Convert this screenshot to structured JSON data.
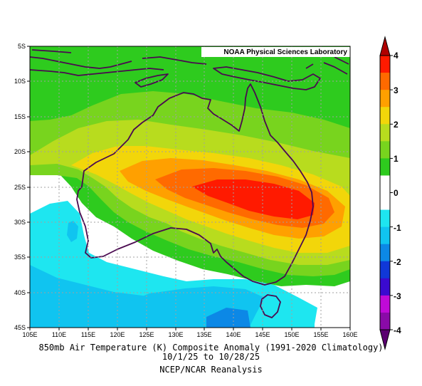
{
  "colors": {
    "plus4": "#b00000",
    "plus35": "#ff1a00",
    "plus3": "#ff6a00",
    "plus25": "#ffa000",
    "plus2": "#f2d60a",
    "plus15": "#b8dc1e",
    "plus1": "#78d41e",
    "plus05": "#2ecb1e",
    "zero": "#ffffff",
    "minus05": "#1ee6f0",
    "minus1": "#10c4f0",
    "minus15": "#0c88e6",
    "minus2": "#1038d8",
    "minus25": "#3a0ad0",
    "minus3": "#c00ad8",
    "minus35": "#8a0aa8",
    "minus4": "#5a0070",
    "coast": "#4a0a50"
  },
  "lab_label": "NOAA Physical Sciences Laboratory",
  "lat_labels": [
    "5S",
    "10S",
    "15S",
    "20S",
    "25S",
    "30S",
    "35S",
    "40S",
    "45S"
  ],
  "lon_labels": [
    "105E",
    "110E",
    "115E",
    "120E",
    "125E",
    "130E",
    "135E",
    "140E",
    "145E",
    "150E",
    "155E",
    "160E"
  ],
  "colorbar": {
    "labels": [
      "4",
      "3",
      "2",
      "1",
      "0",
      "-1",
      "-2",
      "-3",
      "-4"
    ],
    "levels": [
      4,
      3.5,
      3,
      2.5,
      2,
      1.5,
      1,
      0.5,
      -0.5,
      -1,
      -1.5,
      -2,
      -2.5,
      -3,
      -3.5,
      -4
    ]
  },
  "caption": {
    "line1": "850mb Air Temperature (K) Composite Anomaly (1991-2020 Climatology)",
    "line2": "10/1/25  to 10/28/25",
    "line3": "NCEP/NCAR Reanalysis"
  }
}
